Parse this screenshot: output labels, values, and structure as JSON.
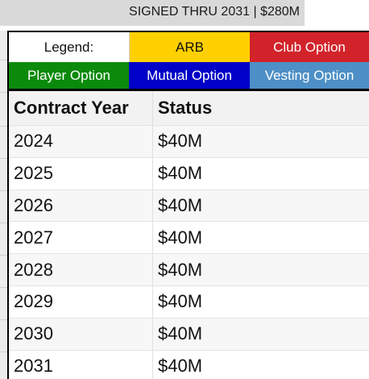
{
  "banner": {
    "text": "SIGNED THRU 2031 | $280M"
  },
  "legend": {
    "label": "Legend:",
    "items": [
      {
        "name": "ARB",
        "color": "#ffd000"
      },
      {
        "name": "Club Option",
        "color": "#d2232a"
      },
      {
        "name": "Player Option",
        "color": "#0b8a0b"
      },
      {
        "name": "Mutual Option",
        "color": "#0000c8"
      },
      {
        "name": "Vesting Option",
        "color": "#4d8fc6"
      }
    ]
  },
  "table": {
    "headers": [
      "Contract Year",
      "Status"
    ],
    "rows": [
      {
        "year": "2024",
        "status": "$40M"
      },
      {
        "year": "2025",
        "status": "$40M"
      },
      {
        "year": "2026",
        "status": "$40M"
      },
      {
        "year": "2027",
        "status": "$40M"
      },
      {
        "year": "2028",
        "status": "$40M"
      },
      {
        "year": "2029",
        "status": "$40M"
      },
      {
        "year": "2030",
        "status": "$40M"
      },
      {
        "year": "2031",
        "status": "$40M"
      }
    ]
  }
}
